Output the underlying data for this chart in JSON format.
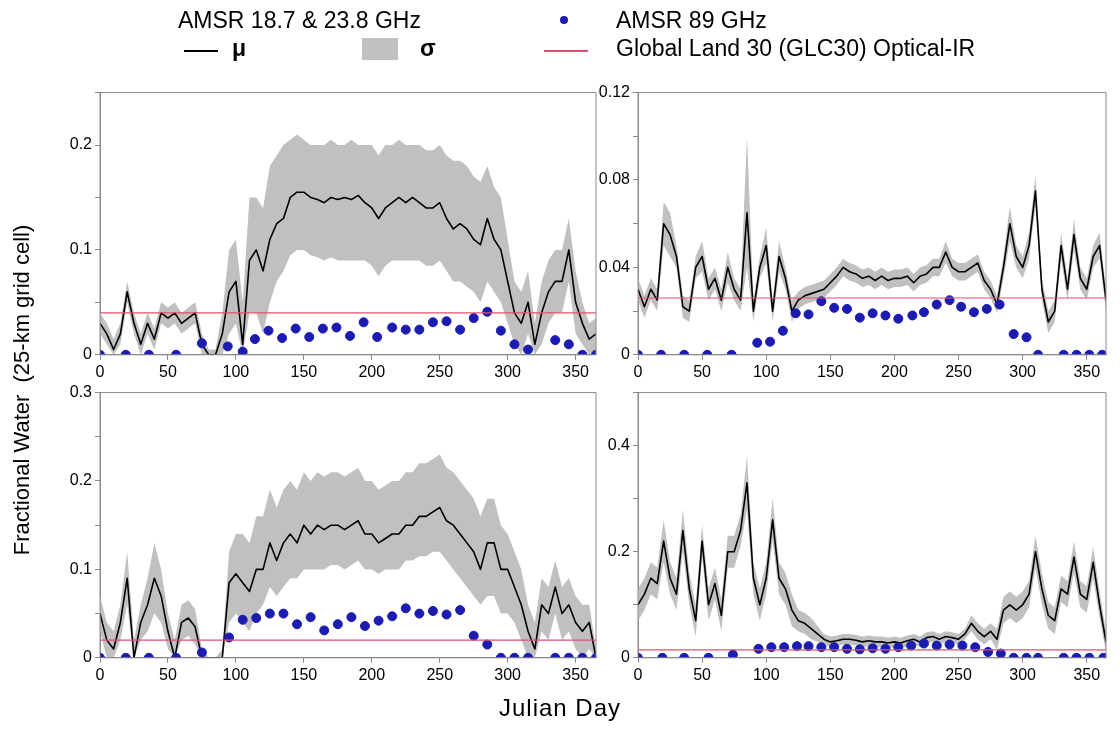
{
  "chart_data": [
    {
      "type": "line",
      "legend": "top",
      "legend_title": "AMSR 18.7 & 23.8 GHz",
      "ylabel": "Fractional Water  (25-km grid cell)",
      "annotations": [
        "σ"
      ],
      "x": [
        0,
        5,
        10,
        15,
        20,
        25,
        30,
        35,
        40,
        45,
        50,
        55,
        60,
        65,
        70,
        75,
        80,
        85,
        90,
        95,
        100,
        105,
        110,
        115,
        120,
        125,
        130,
        135,
        140,
        145,
        150,
        155,
        160,
        165,
        170,
        175,
        180,
        185,
        190,
        195,
        200,
        205,
        210,
        215,
        220,
        225,
        230,
        235,
        240,
        245,
        250,
        255,
        260,
        265,
        270,
        275,
        280,
        285,
        290,
        295,
        300,
        305,
        310,
        315,
        320,
        325,
        330,
        335,
        340,
        345,
        350,
        355,
        360,
        365
      ],
      "xlim": [
        0,
        365
      ],
      "xticks": [
        0,
        50,
        100,
        150,
        200,
        250,
        300,
        350
      ],
      "ylim": [
        0,
        0.25
      ],
      "yticks": [
        0,
        {
          "value": 0.05,
          "label": null
        },
        0.1,
        {
          "value": 0.15,
          "label": null
        },
        0.2,
        {
          "value": 0.25,
          "label": null
        }
      ],
      "ref_lines": [
        {
          "axis": "y",
          "value": 0.04,
          "label": "Global Land 30 (GLC30) Optical-IR",
          "color": "#e0506e"
        }
      ],
      "series": [
        {
          "type": "line",
          "name": "μ",
          "color": "#000000",
          "values": [
            0.03,
            0.02,
            0.005,
            0.02,
            0.06,
            0.03,
            0.01,
            0.03,
            0.015,
            0.04,
            0.035,
            0.04,
            0.03,
            0.035,
            0.04,
            0.01,
            0,
            0,
            0.02,
            0.06,
            0.07,
            0.01,
            0.09,
            0.1,
            0.08,
            0.11,
            0.125,
            0.13,
            0.15,
            0.155,
            0.155,
            0.15,
            0.148,
            0.145,
            0.15,
            0.148,
            0.15,
            0.148,
            0.152,
            0.145,
            0.14,
            0.13,
            0.14,
            0.145,
            0.15,
            0.145,
            0.15,
            0.145,
            0.14,
            0.14,
            0.145,
            0.13,
            0.12,
            0.125,
            0.12,
            0.11,
            0.105,
            0.13,
            0.11,
            0.1,
            0.07,
            0.04,
            0.03,
            0.05,
            0.01,
            0.04,
            0.06,
            0.07,
            0.07,
            0.1,
            0.05,
            0.03,
            0.015,
            0.02
          ],
          "upper": [
            0.04,
            0.03,
            0.015,
            0.03,
            0.07,
            0.04,
            0.02,
            0.04,
            0.025,
            0.05,
            0.045,
            0.05,
            0.04,
            0.045,
            0.05,
            0.02,
            0.005,
            0.005,
            0.04,
            0.1,
            0.11,
            0.05,
            0.15,
            0.15,
            0.14,
            0.18,
            0.19,
            0.2,
            0.205,
            0.21,
            0.205,
            0.2,
            0.2,
            0.2,
            0.205,
            0.2,
            0.2,
            0.205,
            0.2,
            0.2,
            0.2,
            0.19,
            0.2,
            0.2,
            0.205,
            0.2,
            0.2,
            0.2,
            0.195,
            0.195,
            0.2,
            0.19,
            0.185,
            0.185,
            0.18,
            0.17,
            0.165,
            0.18,
            0.16,
            0.15,
            0.11,
            0.07,
            0.06,
            0.08,
            0.03,
            0.07,
            0.09,
            0.1,
            0.1,
            0.13,
            0.08,
            0.05,
            0.03,
            0.035
          ],
          "lower": [
            0.02,
            0.01,
            0,
            0.01,
            0.05,
            0.02,
            0,
            0.02,
            0.005,
            0.03,
            0.025,
            0.03,
            0.02,
            0.025,
            0.03,
            0,
            0,
            0,
            0,
            0.02,
            0.03,
            0,
            0.04,
            0.04,
            0.02,
            0.05,
            0.07,
            0.08,
            0.095,
            0.1,
            0.1,
            0.095,
            0.093,
            0.09,
            0.093,
            0.09,
            0.09,
            0.09,
            0.09,
            0.09,
            0.085,
            0.075,
            0.085,
            0.09,
            0.09,
            0.09,
            0.09,
            0.09,
            0.085,
            0.085,
            0.09,
            0.08,
            0.07,
            0.07,
            0.065,
            0.06,
            0.05,
            0.07,
            0.06,
            0.05,
            0.03,
            0.01,
            0,
            0.02,
            0,
            0.01,
            0.03,
            0.04,
            0.04,
            0.07,
            0.02,
            0.01,
            0,
            0.005
          ]
        },
        {
          "type": "scatter",
          "name": "AMSR 89 GHz",
          "color": "#1c1cb0",
          "x": [
            0,
            19,
            36,
            56,
            75,
            94,
            105,
            114,
            124,
            134,
            144,
            154,
            164,
            174,
            184,
            194,
            204,
            215,
            225,
            235,
            245,
            255,
            265,
            275,
            285,
            295,
            305,
            315,
            335,
            345,
            355,
            365
          ],
          "values": [
            0,
            0,
            0,
            0,
            0.011,
            0.008,
            0.003,
            0.015,
            0.023,
            0.016,
            0.025,
            0.017,
            0.025,
            0.026,
            0.018,
            0.031,
            0.017,
            0.026,
            0.024,
            0.024,
            0.031,
            0.032,
            0.024,
            0.035,
            0.041,
            0.023,
            0.01,
            0.005,
            0.014,
            0.01,
            0,
            0
          ]
        }
      ]
    },
    {
      "type": "line",
      "x": [
        0,
        5,
        10,
        15,
        20,
        25,
        30,
        35,
        40,
        45,
        50,
        55,
        60,
        65,
        70,
        75,
        80,
        85,
        90,
        95,
        100,
        105,
        110,
        115,
        120,
        125,
        130,
        135,
        140,
        145,
        150,
        155,
        160,
        165,
        170,
        175,
        180,
        185,
        190,
        195,
        200,
        205,
        210,
        215,
        220,
        225,
        230,
        235,
        240,
        245,
        250,
        255,
        260,
        265,
        270,
        275,
        280,
        285,
        290,
        295,
        300,
        305,
        310,
        315,
        320,
        325,
        330,
        335,
        340,
        345,
        350,
        355,
        360,
        365
      ],
      "xlim": [
        0,
        365
      ],
      "xticks": [
        0,
        50,
        100,
        150,
        200,
        250,
        300,
        350
      ],
      "ylim": [
        0,
        0.12
      ],
      "yticks": [
        0,
        {
          "value": 0.02,
          "label": null
        },
        0.04,
        {
          "value": 0.06,
          "label": null
        },
        0.08,
        {
          "value": 0.1,
          "label": null
        },
        0.12
      ],
      "ref_lines": [
        {
          "axis": "y",
          "value": 0.026,
          "color": "#e0506e"
        }
      ],
      "series": [
        {
          "type": "line",
          "color": "#000000",
          "values": [
            0.03,
            0.022,
            0.03,
            0.025,
            0.06,
            0.055,
            0.045,
            0.022,
            0.02,
            0.04,
            0.045,
            0.03,
            0.035,
            0.025,
            0.04,
            0.03,
            0.025,
            0.065,
            0.02,
            0.04,
            0.05,
            0.02,
            0.045,
            0.035,
            0.02,
            0.025,
            0.027,
            0.028,
            0.029,
            0.03,
            0.033,
            0.036,
            0.04,
            0.038,
            0.037,
            0.035,
            0.036,
            0.034,
            0.036,
            0.034,
            0.035,
            0.035,
            0.036,
            0.033,
            0.036,
            0.037,
            0.04,
            0.04,
            0.047,
            0.04,
            0.038,
            0.038,
            0.04,
            0.042,
            0.034,
            0.03,
            0.023,
            0.04,
            0.06,
            0.045,
            0.04,
            0.05,
            0.075,
            0.03,
            0.015,
            0.02,
            0.05,
            0.03,
            0.055,
            0.035,
            0.03,
            0.045,
            0.05,
            0.025
          ],
          "upper": [
            0.035,
            0.027,
            0.035,
            0.03,
            0.07,
            0.065,
            0.05,
            0.027,
            0.025,
            0.045,
            0.052,
            0.035,
            0.04,
            0.03,
            0.047,
            0.035,
            0.03,
            0.1,
            0.025,
            0.045,
            0.058,
            0.025,
            0.052,
            0.04,
            0.025,
            0.029,
            0.031,
            0.032,
            0.033,
            0.034,
            0.037,
            0.04,
            0.044,
            0.042,
            0.041,
            0.039,
            0.04,
            0.038,
            0.04,
            0.038,
            0.039,
            0.039,
            0.04,
            0.037,
            0.04,
            0.041,
            0.044,
            0.044,
            0.052,
            0.044,
            0.042,
            0.042,
            0.044,
            0.046,
            0.038,
            0.034,
            0.027,
            0.045,
            0.068,
            0.05,
            0.045,
            0.056,
            0.082,
            0.035,
            0.02,
            0.025,
            0.056,
            0.035,
            0.062,
            0.04,
            0.035,
            0.05,
            0.056,
            0.03
          ],
          "lower": [
            0.025,
            0.017,
            0.025,
            0.02,
            0.05,
            0.045,
            0.04,
            0.017,
            0.015,
            0.035,
            0.038,
            0.025,
            0.03,
            0.02,
            0.033,
            0.025,
            0.02,
            0.04,
            0.015,
            0.035,
            0.042,
            0.015,
            0.038,
            0.03,
            0.015,
            0.021,
            0.023,
            0.024,
            0.025,
            0.026,
            0.029,
            0.032,
            0.036,
            0.034,
            0.033,
            0.031,
            0.032,
            0.03,
            0.032,
            0.03,
            0.031,
            0.031,
            0.032,
            0.029,
            0.032,
            0.033,
            0.036,
            0.036,
            0.042,
            0.036,
            0.034,
            0.034,
            0.036,
            0.038,
            0.03,
            0.026,
            0.019,
            0.035,
            0.052,
            0.04,
            0.035,
            0.044,
            0.068,
            0.025,
            0.01,
            0.015,
            0.044,
            0.025,
            0.048,
            0.03,
            0.025,
            0.04,
            0.044,
            0.02
          ]
        },
        {
          "type": "scatter",
          "color": "#1c1cb0",
          "x": [
            0,
            18,
            36,
            54,
            73,
            93,
            103,
            113,
            123,
            133,
            143,
            153,
            163,
            173,
            183,
            193,
            203,
            214,
            223,
            233,
            243,
            252,
            262,
            272,
            282,
            293,
            303,
            312,
            332,
            342,
            352,
            362
          ],
          "values": [
            0,
            0,
            0,
            0,
            0,
            0.0055,
            0.006,
            0.011,
            0.019,
            0.0185,
            0.0245,
            0.0215,
            0.021,
            0.017,
            0.019,
            0.018,
            0.0165,
            0.018,
            0.0195,
            0.023,
            0.025,
            0.022,
            0.0195,
            0.021,
            0.023,
            0.0095,
            0.008,
            0,
            0,
            0,
            0,
            0
          ]
        }
      ]
    },
    {
      "type": "line",
      "xlabel": "Julian Day",
      "x": [
        0,
        5,
        10,
        15,
        20,
        25,
        30,
        35,
        40,
        45,
        50,
        55,
        60,
        65,
        70,
        75,
        80,
        85,
        90,
        95,
        100,
        105,
        110,
        115,
        120,
        125,
        130,
        135,
        140,
        145,
        150,
        155,
        160,
        165,
        170,
        175,
        180,
        185,
        190,
        195,
        200,
        205,
        210,
        215,
        220,
        225,
        230,
        235,
        240,
        245,
        250,
        255,
        260,
        265,
        270,
        275,
        280,
        285,
        290,
        295,
        300,
        305,
        310,
        315,
        320,
        325,
        330,
        335,
        340,
        345,
        350,
        355,
        360,
        365
      ],
      "xlim": [
        0,
        365
      ],
      "xticks": [
        0,
        50,
        100,
        150,
        200,
        250,
        300,
        350
      ],
      "ylim": [
        0,
        0.3
      ],
      "yticks": [
        0,
        {
          "value": 0.05,
          "label": null
        },
        0.1,
        {
          "value": 0.15,
          "label": null
        },
        0.2,
        {
          "value": 0.25,
          "label": null
        },
        0.3
      ],
      "ref_lines": [
        {
          "axis": "y",
          "value": 0.02,
          "color": "#e0506e"
        }
      ],
      "series": [
        {
          "type": "line",
          "color": "#000000",
          "values": [
            0.05,
            0.02,
            0.01,
            0.04,
            0.09,
            0,
            0.04,
            0.06,
            0.09,
            0.07,
            0.03,
            0,
            0.04,
            0.045,
            0.035,
            0,
            0,
            0,
            0,
            0.085,
            0.095,
            0.085,
            0.075,
            0.1,
            0.1,
            0.13,
            0.11,
            0.13,
            0.14,
            0.13,
            0.15,
            0.14,
            0.15,
            0.145,
            0.15,
            0.15,
            0.145,
            0.15,
            0.155,
            0.14,
            0.14,
            0.13,
            0.135,
            0.14,
            0.14,
            0.15,
            0.15,
            0.16,
            0.16,
            0.165,
            0.17,
            0.155,
            0.15,
            0.14,
            0.13,
            0.12,
            0.1,
            0.13,
            0.13,
            0.1,
            0.1,
            0.08,
            0.06,
            0.03,
            0.01,
            0.06,
            0.05,
            0.08,
            0.05,
            0.06,
            0.04,
            0.03,
            0.04,
            0
          ],
          "upper": [
            0.07,
            0.04,
            0.03,
            0.06,
            0.12,
            0.02,
            0.06,
            0.09,
            0.13,
            0.1,
            0.05,
            0.02,
            0.06,
            0.065,
            0.055,
            0.01,
            0,
            0,
            0.01,
            0.12,
            0.14,
            0.14,
            0.13,
            0.16,
            0.16,
            0.19,
            0.17,
            0.19,
            0.2,
            0.19,
            0.21,
            0.2,
            0.21,
            0.205,
            0.21,
            0.21,
            0.205,
            0.21,
            0.215,
            0.2,
            0.2,
            0.19,
            0.195,
            0.2,
            0.2,
            0.21,
            0.21,
            0.22,
            0.22,
            0.225,
            0.23,
            0.215,
            0.21,
            0.2,
            0.19,
            0.18,
            0.16,
            0.18,
            0.18,
            0.15,
            0.14,
            0.12,
            0.1,
            0.06,
            0.04,
            0.09,
            0.08,
            0.11,
            0.08,
            0.09,
            0.07,
            0.06,
            0.06,
            0.01
          ],
          "lower": [
            0.03,
            0,
            0,
            0.02,
            0.06,
            0,
            0.02,
            0.03,
            0.05,
            0.04,
            0.01,
            0,
            0.02,
            0.025,
            0.015,
            0,
            0,
            0,
            0,
            0.04,
            0.05,
            0.04,
            0.03,
            0.05,
            0.06,
            0.08,
            0.07,
            0.08,
            0.09,
            0.09,
            0.1,
            0.1,
            0.1,
            0.1,
            0.105,
            0.105,
            0.1,
            0.105,
            0.11,
            0.1,
            0.1,
            0.095,
            0.1,
            0.1,
            0.1,
            0.11,
            0.11,
            0.115,
            0.115,
            0.12,
            0.12,
            0.11,
            0.1,
            0.09,
            0.08,
            0.07,
            0.06,
            0.07,
            0.07,
            0.05,
            0.05,
            0.04,
            0.02,
            0,
            0,
            0.03,
            0.02,
            0.05,
            0.02,
            0.03,
            0.01,
            0,
            0.01,
            0
          ]
        },
        {
          "type": "scatter",
          "color": "#1c1cb0",
          "x": [
            0,
            19,
            36,
            56,
            75,
            95,
            105,
            115,
            125,
            135,
            145,
            155,
            165,
            175,
            185,
            195,
            205,
            215,
            225,
            235,
            245,
            255,
            265,
            275,
            285,
            295,
            305,
            315,
            335,
            345,
            355,
            365
          ],
          "values": [
            0,
            0,
            0,
            0,
            0.006,
            0.023,
            0.043,
            0.045,
            0.05,
            0.05,
            0.038,
            0.046,
            0.031,
            0.038,
            0.046,
            0.036,
            0.042,
            0.047,
            0.056,
            0.05,
            0.053,
            0.049,
            0.054,
            0.025,
            0.015,
            0,
            0,
            0,
            0,
            0,
            0,
            0
          ]
        }
      ]
    },
    {
      "type": "line",
      "x": [
        0,
        5,
        10,
        15,
        20,
        25,
        30,
        35,
        40,
        45,
        50,
        55,
        60,
        65,
        70,
        75,
        80,
        85,
        90,
        95,
        100,
        105,
        110,
        115,
        120,
        125,
        130,
        135,
        140,
        145,
        150,
        155,
        160,
        165,
        170,
        175,
        180,
        185,
        190,
        195,
        200,
        205,
        210,
        215,
        220,
        225,
        230,
        235,
        240,
        245,
        250,
        255,
        260,
        265,
        270,
        275,
        280,
        285,
        290,
        295,
        300,
        305,
        310,
        315,
        320,
        325,
        330,
        335,
        340,
        345,
        350,
        355,
        360,
        365
      ],
      "xlim": [
        0,
        365
      ],
      "xticks": [
        0,
        50,
        100,
        150,
        200,
        250,
        300,
        350
      ],
      "ylim": [
        0,
        0.5
      ],
      "yticks": [
        0,
        {
          "value": 0.1,
          "label": null
        },
        0.2,
        {
          "value": 0.3,
          "label": null
        },
        0.4,
        {
          "value": 0.5,
          "label": null
        }
      ],
      "ref_lines": [
        {
          "axis": "y",
          "value": 0.015,
          "color": "#e0506e"
        }
      ],
      "series": [
        {
          "type": "line",
          "color": "#000000",
          "values": [
            0.1,
            0.12,
            0.15,
            0.14,
            0.22,
            0.15,
            0.12,
            0.24,
            0.13,
            0.07,
            0.22,
            0.1,
            0.14,
            0.08,
            0.2,
            0.2,
            0.24,
            0.33,
            0.15,
            0.1,
            0.15,
            0.26,
            0.15,
            0.13,
            0.09,
            0.07,
            0.065,
            0.055,
            0.045,
            0.035,
            0.03,
            0.032,
            0.035,
            0.035,
            0.033,
            0.03,
            0.032,
            0.03,
            0.03,
            0.028,
            0.03,
            0.028,
            0.032,
            0.035,
            0.03,
            0.038,
            0.04,
            0.035,
            0.04,
            0.038,
            0.035,
            0.045,
            0.065,
            0.05,
            0.04,
            0.05,
            0.035,
            0.09,
            0.1,
            0.09,
            0.1,
            0.12,
            0.2,
            0.13,
            0.08,
            0.07,
            0.13,
            0.12,
            0.19,
            0.12,
            0.11,
            0.18,
            0.1,
            0.03
          ],
          "upper": [
            0.13,
            0.15,
            0.18,
            0.17,
            0.26,
            0.18,
            0.15,
            0.28,
            0.16,
            0.1,
            0.25,
            0.13,
            0.17,
            0.11,
            0.23,
            0.23,
            0.27,
            0.38,
            0.18,
            0.13,
            0.18,
            0.3,
            0.18,
            0.16,
            0.12,
            0.09,
            0.085,
            0.075,
            0.06,
            0.045,
            0.04,
            0.042,
            0.045,
            0.045,
            0.043,
            0.04,
            0.042,
            0.04,
            0.04,
            0.038,
            0.04,
            0.038,
            0.042,
            0.045,
            0.04,
            0.048,
            0.05,
            0.045,
            0.05,
            0.048,
            0.045,
            0.055,
            0.08,
            0.065,
            0.055,
            0.065,
            0.055,
            0.115,
            0.125,
            0.115,
            0.125,
            0.145,
            0.23,
            0.16,
            0.105,
            0.095,
            0.155,
            0.145,
            0.22,
            0.145,
            0.135,
            0.21,
            0.125,
            0.05
          ],
          "lower": [
            0.07,
            0.09,
            0.12,
            0.11,
            0.18,
            0.12,
            0.09,
            0.2,
            0.1,
            0.04,
            0.19,
            0.07,
            0.11,
            0.05,
            0.17,
            0.17,
            0.21,
            0.28,
            0.12,
            0.07,
            0.12,
            0.22,
            0.12,
            0.1,
            0.06,
            0.05,
            0.045,
            0.035,
            0.03,
            0.025,
            0.02,
            0.022,
            0.025,
            0.025,
            0.023,
            0.02,
            0.022,
            0.02,
            0.02,
            0.018,
            0.02,
            0.018,
            0.022,
            0.025,
            0.02,
            0.028,
            0.03,
            0.025,
            0.03,
            0.028,
            0.025,
            0.035,
            0.05,
            0.035,
            0.025,
            0.035,
            0.015,
            0.065,
            0.075,
            0.065,
            0.075,
            0.095,
            0.17,
            0.1,
            0.055,
            0.045,
            0.105,
            0.095,
            0.16,
            0.095,
            0.085,
            0.15,
            0.075,
            0.01
          ]
        },
        {
          "type": "scatter",
          "color": "#1c1cb0",
          "x": [
            0,
            19,
            36,
            55,
            74,
            94,
            104,
            114,
            124,
            133,
            143,
            153,
            163,
            173,
            183,
            193,
            203,
            213,
            223,
            233,
            243,
            253,
            263,
            273,
            283,
            293,
            303,
            312,
            332,
            342,
            352,
            363
          ],
          "values": [
            0,
            0,
            0,
            0,
            0.006,
            0.017,
            0.02,
            0.02,
            0.022,
            0.022,
            0.02,
            0.02,
            0.017,
            0.016,
            0.018,
            0.017,
            0.02,
            0.023,
            0.027,
            0.023,
            0.025,
            0.023,
            0.02,
            0.011,
            0.008,
            0,
            0,
            0,
            0,
            0,
            0,
            0
          ]
        }
      ]
    }
  ]
}
